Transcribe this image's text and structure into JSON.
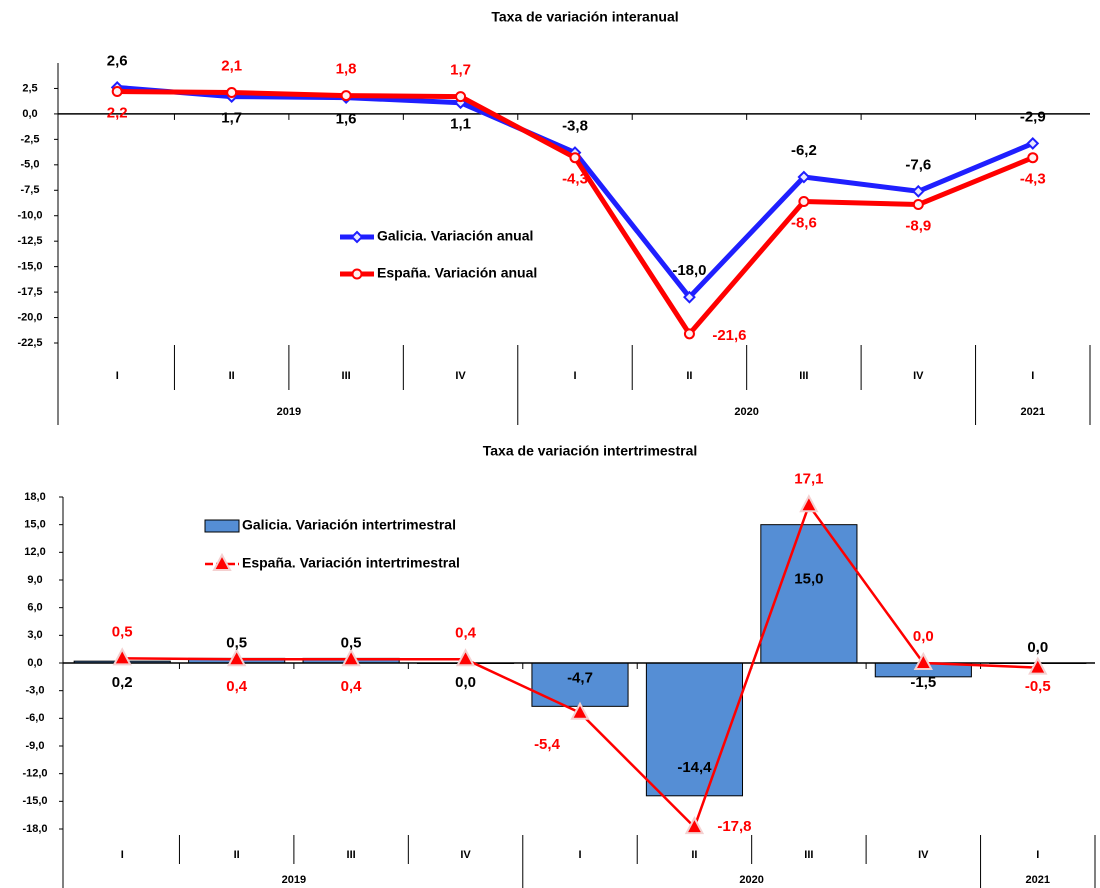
{
  "chart_data": [
    {
      "type": "line",
      "title": "Taxa de variación interanual",
      "categories": [
        "I",
        "II",
        "III",
        "IV",
        "I",
        "II",
        "III",
        "IV",
        "I"
      ],
      "years": [
        "2019",
        "2019",
        "2019",
        "2019",
        "2020",
        "2020",
        "2020",
        "2020",
        "2021"
      ],
      "series": [
        {
          "name": "Galicia. Variación anual",
          "color": "#1f1fff",
          "marker": "diamond",
          "label_color": "#000000",
          "values": [
            2.6,
            1.7,
            1.6,
            1.1,
            -3.8,
            -18.0,
            -6.2,
            -7.6,
            -2.9
          ],
          "value_labels": [
            "2,6",
            "1,7",
            "1,6",
            "1,1",
            "-3,8",
            "-18,0",
            "-6,2",
            "-7,6",
            "-2,9"
          ]
        },
        {
          "name": "España. Variación anual",
          "color": "#ff0000",
          "marker": "circle",
          "label_color": "#ff0000",
          "values": [
            2.2,
            2.1,
            1.8,
            1.7,
            -4.3,
            -21.6,
            -8.6,
            -8.9,
            -4.3
          ],
          "value_labels": [
            "2,2",
            "2,1",
            "1,8",
            "1,7",
            "-4,3",
            "-21,6",
            "-8,6",
            "-8,9",
            "-4,3"
          ]
        }
      ],
      "ylim": [
        -22.5,
        5
      ],
      "yticks": [
        {
          "value": 2.5,
          "label": "2,5"
        },
        {
          "value": 0,
          "label": "0,0"
        },
        {
          "value": -2.5,
          "label": "-2,5"
        },
        {
          "value": -5,
          "label": "-5,0"
        },
        {
          "value": -7.5,
          "label": "-7,5"
        },
        {
          "value": -10,
          "label": "-10,0"
        },
        {
          "value": -12.5,
          "label": "-12,5"
        },
        {
          "value": -15,
          "label": "-15,0"
        },
        {
          "value": -17.5,
          "label": "-17,5"
        },
        {
          "value": -20,
          "label": "-20,0"
        },
        {
          "value": -22.5,
          "label": "-22,5"
        }
      ],
      "grid": false,
      "legend": "center"
    },
    {
      "type": "combo",
      "title": "Taxa de variación intertrimestral",
      "categories": [
        "I",
        "II",
        "III",
        "IV",
        "I",
        "II",
        "III",
        "IV",
        "I"
      ],
      "years": [
        "2019",
        "2019",
        "2019",
        "2019",
        "2020",
        "2020",
        "2020",
        "2020",
        "2021"
      ],
      "series": [
        {
          "name": "Galicia. Variación intertrimestral",
          "type": "bar",
          "color": "#558ed5",
          "label_color": "#000000",
          "values": [
            0.2,
            0.5,
            0.5,
            0.0,
            -4.7,
            -14.4,
            15.0,
            -1.5,
            0.0
          ],
          "value_labels": [
            "0,2",
            "0,5",
            "0,5",
            "0,0",
            "-4,7",
            "-14,4",
            "15,0",
            "-1,5",
            "0,0"
          ]
        },
        {
          "name": "España. Variación intertrimestral",
          "type": "line",
          "color": "#ff0000",
          "marker": "triangle",
          "label_color": "#ff0000",
          "values": [
            0.5,
            0.4,
            0.4,
            0.4,
            -5.4,
            -17.8,
            17.1,
            0.0,
            -0.5
          ],
          "value_labels": [
            "0,5",
            "0,4",
            "0,4",
            "0,4",
            "-5,4",
            "-17,8",
            "17,1",
            "0,0",
            "-0,5"
          ]
        }
      ],
      "ylim": [
        -18,
        18
      ],
      "yticks": [
        {
          "value": 18,
          "label": "18,0"
        },
        {
          "value": 15,
          "label": "15,0"
        },
        {
          "value": 12,
          "label": "12,0"
        },
        {
          "value": 9,
          "label": "9,0"
        },
        {
          "value": 6,
          "label": "6,0"
        },
        {
          "value": 3,
          "label": "3,0"
        },
        {
          "value": 0,
          "label": "0,0"
        },
        {
          "value": -3,
          "label": "-3,0"
        },
        {
          "value": -6,
          "label": "-6,0"
        },
        {
          "value": -9,
          "label": "-9,0"
        },
        {
          "value": -12,
          "label": "-12,0"
        },
        {
          "value": -15,
          "label": "-15,0"
        },
        {
          "value": -18,
          "label": "-18,0"
        }
      ],
      "grid": false,
      "legend": "upper left"
    }
  ]
}
